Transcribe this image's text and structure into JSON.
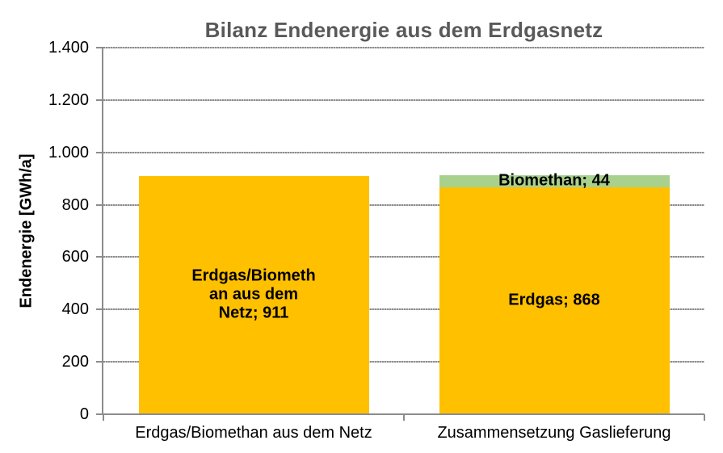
{
  "page": {
    "background": "#FFFFFF"
  },
  "colors": {
    "bar_yellow": "#FFC000",
    "bar_green": "#A9D18E",
    "title_text": "#595959",
    "axis_and_grid": "#8C8C8C",
    "label_text": "#000000"
  },
  "chart_data": {
    "type": "bar",
    "stacked": true,
    "title": "Bilanz Endenergie aus dem Erdgasnetz",
    "ylabel": "Endenergie [GWh/a]",
    "xlabel": "",
    "ylim": [
      0,
      1400
    ],
    "ytick_step": 200,
    "ytick_labels": [
      "0",
      "200",
      "400",
      "600",
      "800",
      "1.000",
      "1.200",
      "1.400"
    ],
    "grid": "horizontal dotted gridlines every 200",
    "legend_position": "none",
    "categories": [
      "Erdgas/Biomethan aus dem Netz",
      "Zusammensetzung Gaslieferung"
    ],
    "series": [
      {
        "name": "Erdgas",
        "color": "#FFC000",
        "values": [
          911,
          868
        ]
      },
      {
        "name": "Biomethan",
        "color": "#A9D18E",
        "values": [
          0,
          44
        ]
      }
    ],
    "bars": [
      {
        "category": "Erdgas/Biomethan aus dem Netz",
        "segments": [
          {
            "name": "Erdgas/Biomethan aus dem Netz",
            "value": 911,
            "color": "#FFC000",
            "label_lines": [
              "Erdgas/Biometh",
              "an aus dem",
              "Netz; 911"
            ]
          }
        ]
      },
      {
        "category": "Zusammensetzung Gaslieferung",
        "segments": [
          {
            "name": "Erdgas",
            "value": 868,
            "color": "#FFC000",
            "label_lines": [
              "Erdgas; 868"
            ]
          },
          {
            "name": "Biomethan",
            "value": 44,
            "color": "#A9D18E",
            "label_lines": [
              "Biomethan; 44"
            ]
          }
        ]
      }
    ]
  }
}
